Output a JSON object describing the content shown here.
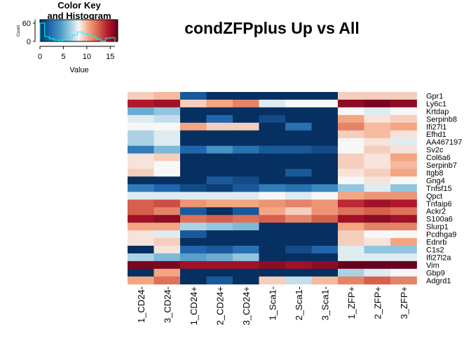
{
  "chart_data": {
    "type": "heatmap",
    "title": "condZFPplus Up vs All",
    "color_key": {
      "title_line1": "Color Key",
      "title_line2": "and Histogram",
      "xlabel": "Value",
      "ylabel": "Count",
      "x_ticks": [
        "0",
        "5",
        "10",
        "15"
      ],
      "y_ticks": [
        "0",
        "60"
      ],
      "range": [
        0,
        16
      ],
      "low_color": "#053061",
      "mid_color": "#f7f7f7",
      "high_color": "#67001f",
      "histogram_color": "#00ffff"
    },
    "columns": [
      "1_CD24-",
      "3_CD24-",
      "1_CD24+",
      "2_CD24+",
      "3_CD24+",
      "1_Sca1-",
      "2_Sca1-",
      "3_Sca1-",
      "1_ZFP+",
      "2_ZFP+",
      "3_ZFP+"
    ],
    "rows": [
      "Gpr1",
      "Ly6c1",
      "Krtdap",
      "Serpinb8",
      "Ifi27l1",
      "Efhd1",
      "AA467197",
      "Sv2c",
      "Col6a6",
      "Serpinb7",
      "Itgb8",
      "Gng4",
      "Tnfsf15",
      "Qpct",
      "Tnfaip6",
      "Ackr2",
      "S100a6",
      "Slurp1",
      "Pcdhga9",
      "Ednrb",
      "C1s2",
      "Ifi27l2a",
      "Vim",
      "Gbp9",
      "Adgrd1"
    ],
    "values": [
      [
        9,
        9.5,
        1.5,
        0,
        0,
        0,
        0,
        0,
        9,
        9,
        9
      ],
      [
        14,
        14.5,
        9,
        10,
        11,
        7.5,
        8,
        8,
        15,
        15.5,
        15
      ],
      [
        5,
        6,
        0,
        0,
        0,
        0,
        0,
        0,
        8,
        7.5,
        8
      ],
      [
        7.5,
        7,
        0,
        2,
        0,
        1,
        0,
        0,
        10,
        8.5,
        9
      ],
      [
        8,
        8,
        10,
        9,
        9,
        0,
        2.5,
        0,
        11,
        9.5,
        10
      ],
      [
        6.5,
        7.5,
        0,
        0,
        0,
        0,
        0,
        0,
        9,
        9.5,
        8.5
      ],
      [
        6.5,
        7.5,
        0,
        0,
        0,
        0,
        0,
        0,
        8,
        8.5,
        7.5
      ],
      [
        3,
        5.5,
        2,
        4,
        2.5,
        1.5,
        1.5,
        1,
        8,
        9,
        8.5
      ],
      [
        8.5,
        9,
        0,
        0,
        0,
        0,
        0,
        0,
        9,
        8.5,
        10
      ],
      [
        8.5,
        8,
        0,
        0,
        0,
        0,
        0,
        0,
        9,
        8.5,
        9.5
      ],
      [
        9,
        8,
        0,
        0,
        0,
        0,
        1.5,
        0,
        8.5,
        9,
        10
      ],
      [
        0,
        0,
        0,
        1.5,
        1,
        0,
        0,
        0,
        8,
        8.5,
        8
      ],
      [
        3,
        2,
        1,
        0.5,
        1.5,
        3,
        2.5,
        3.5,
        6,
        7.5,
        6
      ],
      [
        7.5,
        7.5,
        7.5,
        7.5,
        7.5,
        8,
        7.5,
        8,
        10,
        10.5,
        10.5
      ],
      [
        12,
        12.5,
        10.5,
        10,
        10,
        10.5,
        11,
        10.5,
        13.5,
        14.5,
        14
      ],
      [
        12,
        11,
        1.5,
        0,
        1.5,
        10,
        9,
        10.5,
        11.5,
        12,
        11.5
      ],
      [
        14.5,
        15,
        11.5,
        12,
        11.5,
        12,
        11,
        12,
        14.5,
        15,
        14.5
      ],
      [
        10,
        10,
        6.5,
        6,
        5.5,
        0,
        0,
        0,
        10,
        11,
        11
      ],
      [
        8.5,
        7.5,
        1.5,
        0,
        0,
        0,
        0,
        0,
        9,
        8,
        8
      ],
      [
        8.5,
        9,
        0,
        0,
        0,
        0,
        0,
        0,
        9,
        8.5,
        10
      ],
      [
        0,
        8.5,
        2,
        1.5,
        2.5,
        0,
        1,
        2,
        7.5,
        6,
        6
      ],
      [
        6.5,
        5.5,
        4.5,
        5,
        6,
        0,
        0,
        0,
        7.5,
        7.5,
        7.5
      ],
      [
        15.5,
        15.5,
        14.5,
        14.5,
        14.5,
        15,
        14.5,
        15,
        16,
        16,
        16
      ],
      [
        0,
        10,
        0,
        0,
        0,
        0,
        0,
        0,
        6.5,
        7.5,
        8
      ],
      [
        10,
        11.5,
        0,
        1.5,
        0,
        9,
        7,
        9.5,
        11,
        12,
        11
      ]
    ]
  }
}
